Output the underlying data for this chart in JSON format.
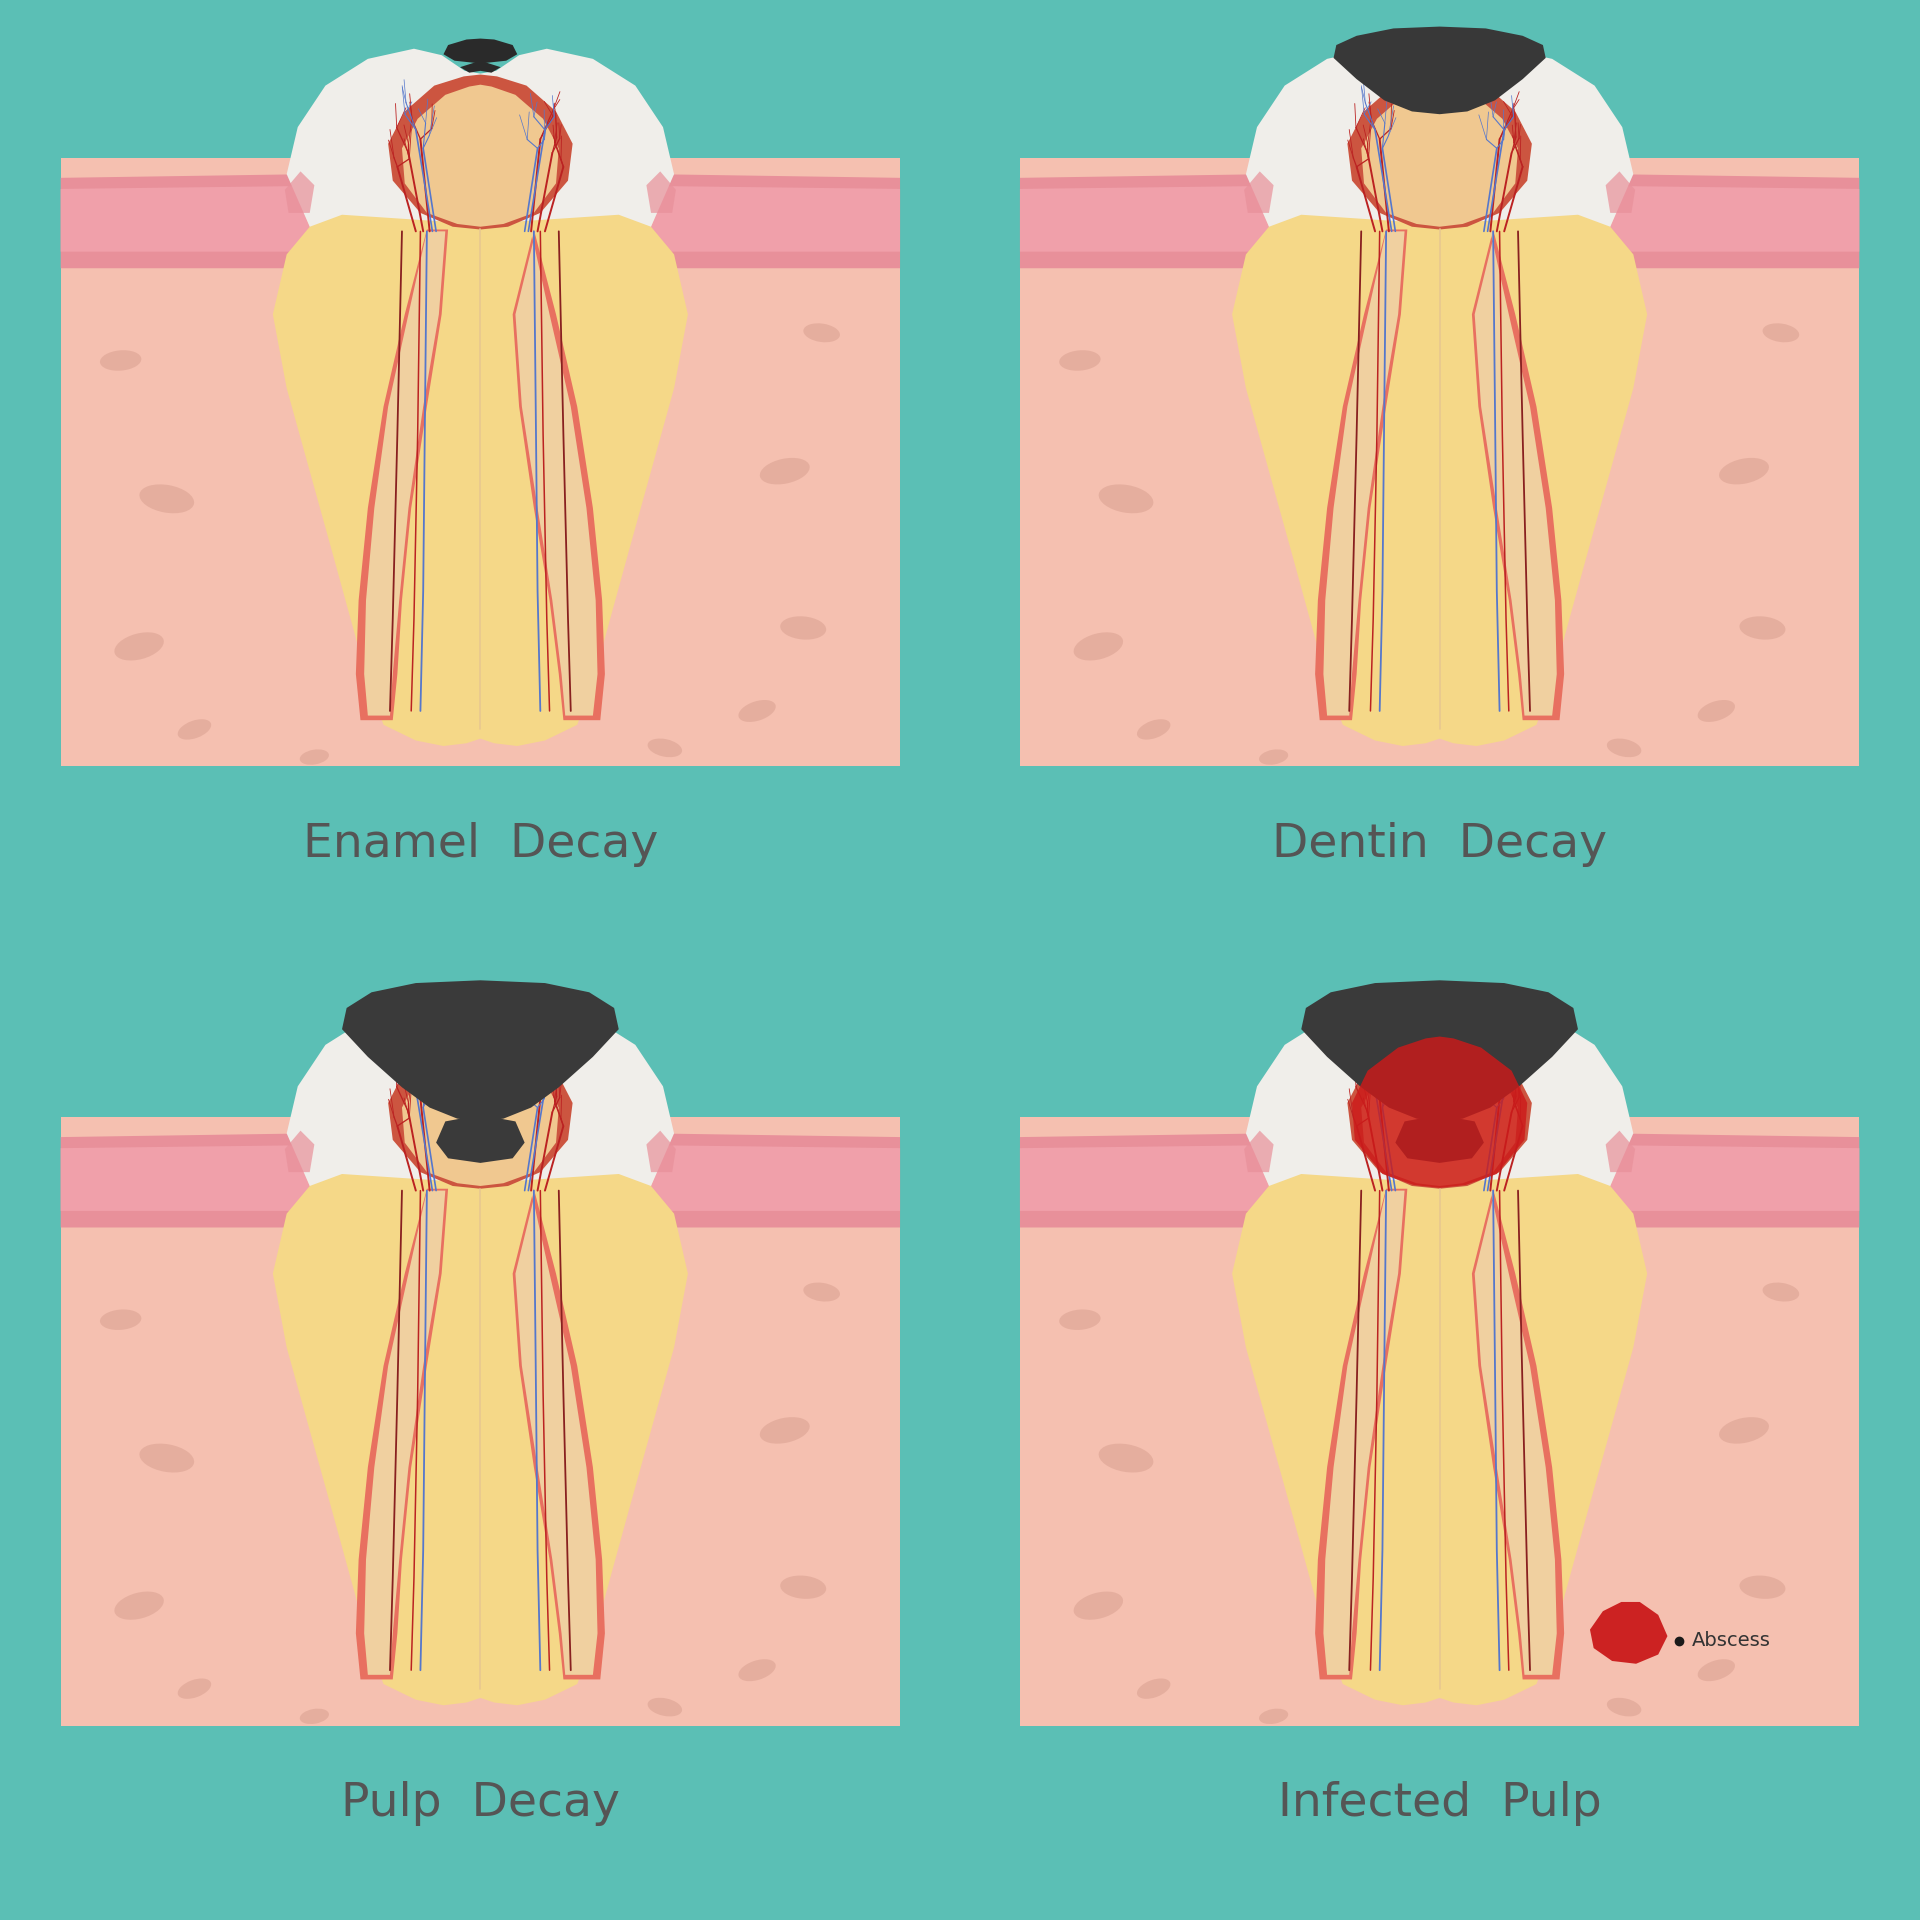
{
  "background_color": "#5bbfb5",
  "bone_color": "#f5c0b0",
  "bone_spot_color": "#d9a090",
  "gum_pink": "#f0a0aa",
  "gum_dark": "#e8909a",
  "enamel_color": "#f0eeea",
  "dentin_color": "#f5d888",
  "pulp_outer_color": "#cc5540",
  "pulp_inner_color": "#f0c890",
  "canal_wall_color": "#e87060",
  "canal_inner_color": "#f0d0a0",
  "nerve_red": "#bb2222",
  "nerve_darkred": "#882020",
  "nerve_blue": "#5577cc",
  "nerve_cream": "#e8c890",
  "decay_color_1": "#2a2a2a",
  "decay_color_2": "#383838",
  "decay_color_3": "#3a3a3a",
  "infected_red": "#cc1a1a",
  "abscess_red": "#cc2222",
  "text_color": "#555555",
  "labels": [
    "Enamel  Decay",
    "Dentin  Decay",
    "Pulp  Decay",
    "Infected  Pulp"
  ],
  "label_fontsize": 34,
  "abscess_fontsize": 14
}
